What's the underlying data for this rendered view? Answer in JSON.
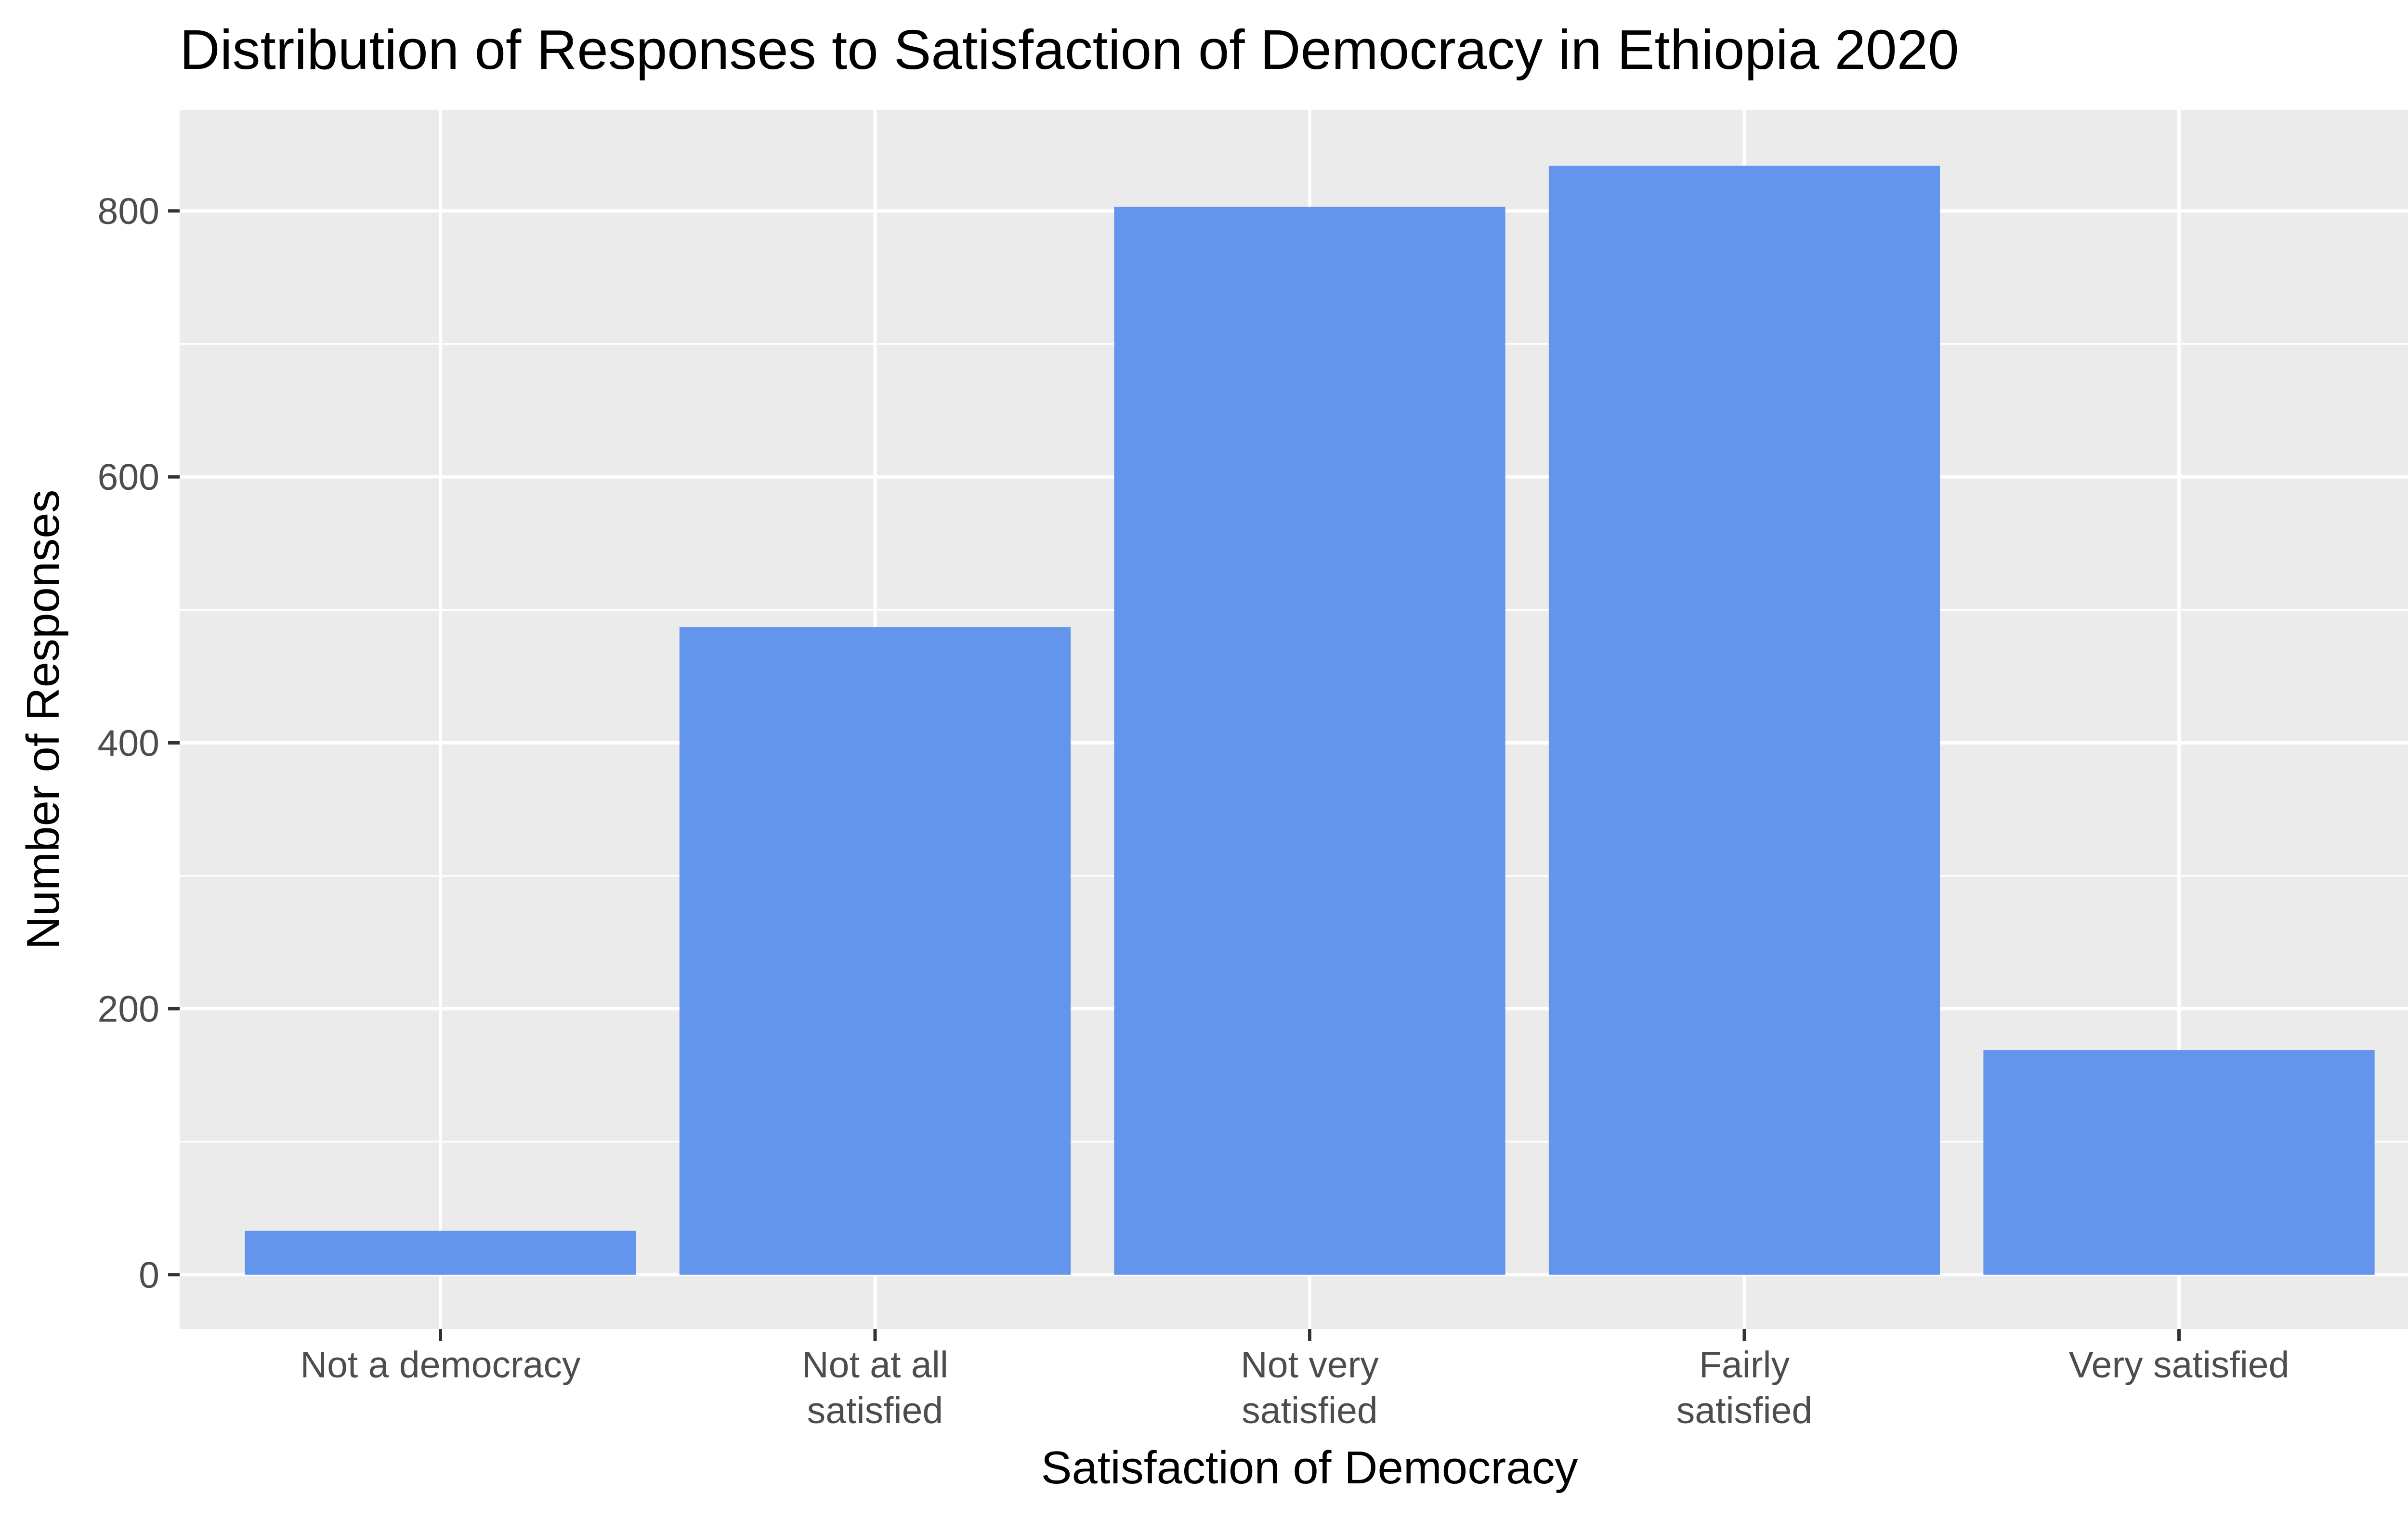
{
  "chart_data": {
    "type": "bar",
    "title": "Distribution of Responses to Satisfaction of Democracy in Ethiopia 2020",
    "xlabel": "Satisfaction of Democracy",
    "ylabel": "Number of Responses",
    "categories": [
      [
        "Not a democracy"
      ],
      [
        "Not at all",
        "satisfied"
      ],
      [
        "Not very",
        "satisfied"
      ],
      [
        "Fairly",
        "satisfied"
      ],
      [
        "Very satisfied"
      ]
    ],
    "values": [
      33,
      487,
      803,
      834,
      169
    ],
    "ylim": [
      -41,
      876
    ],
    "yticks": [
      0,
      200,
      400,
      600,
      800
    ],
    "bar_color": "#6495ed",
    "panel_color": "#ebebeb",
    "grid": true,
    "legend": "none"
  }
}
